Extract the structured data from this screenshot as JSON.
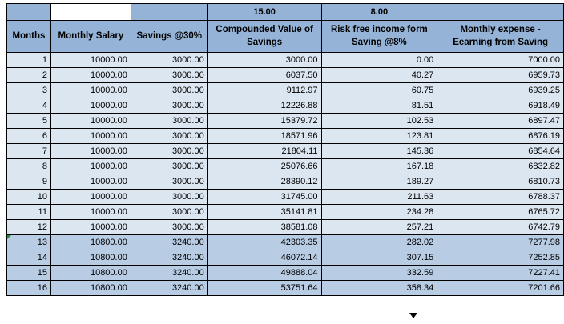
{
  "sheet": {
    "param_row": [
      "",
      "",
      "",
      "15.00",
      "8.00",
      ""
    ],
    "headers": [
      "Months",
      "Monthly Salary",
      "Savings @30%",
      "Compounded Value of Savings",
      "Risk free income form Saving @8%",
      "Monthly expense  -\nEearning from Saving"
    ],
    "rows": [
      [
        "1",
        "10000.00",
        "3000.00",
        "3000.00",
        "0.00",
        "7000.00"
      ],
      [
        "2",
        "10000.00",
        "3000.00",
        "6037.50",
        "40.27",
        "6959.73"
      ],
      [
        "3",
        "10000.00",
        "3000.00",
        "9112.97",
        "60.75",
        "6939.25"
      ],
      [
        "4",
        "10000.00",
        "3000.00",
        "12226.88",
        "81.51",
        "6918.49"
      ],
      [
        "5",
        "10000.00",
        "3000.00",
        "15379.72",
        "102.53",
        "6897.47"
      ],
      [
        "6",
        "10000.00",
        "3000.00",
        "18571.96",
        "123.81",
        "6876.19"
      ],
      [
        "7",
        "10000.00",
        "3000.00",
        "21804.11",
        "145.36",
        "6854.64"
      ],
      [
        "8",
        "10000.00",
        "3000.00",
        "25076.66",
        "167.18",
        "6832.82"
      ],
      [
        "9",
        "10000.00",
        "3000.00",
        "28390.12",
        "189.27",
        "6810.73"
      ],
      [
        "10",
        "10000.00",
        "3000.00",
        "31745.00",
        "211.63",
        "6788.37"
      ],
      [
        "11",
        "10000.00",
        "3000.00",
        "35141.81",
        "234.28",
        "6765.72"
      ],
      [
        "12",
        "10000.00",
        "3000.00",
        "38581.08",
        "257.21",
        "6742.79"
      ],
      [
        "13",
        "10800.00",
        "3240.00",
        "42303.35",
        "282.02",
        "7277.98"
      ],
      [
        "14",
        "10800.00",
        "3240.00",
        "46072.14",
        "307.15",
        "7252.85"
      ],
      [
        "15",
        "10800.00",
        "3240.00",
        "49888.04",
        "332.59",
        "7227.41"
      ],
      [
        "16",
        "10800.00",
        "3240.00",
        "53751.64",
        "358.34",
        "7201.66"
      ]
    ],
    "highlight_start_month": 13,
    "error_marker_month": 13,
    "colors": {
      "header_bg": "#95B3D7",
      "row_bg": "#DCE6F1",
      "highlight_row_bg": "#B8CCE4",
      "grid": "#000000",
      "error_marker": "#1E8E3E"
    }
  }
}
